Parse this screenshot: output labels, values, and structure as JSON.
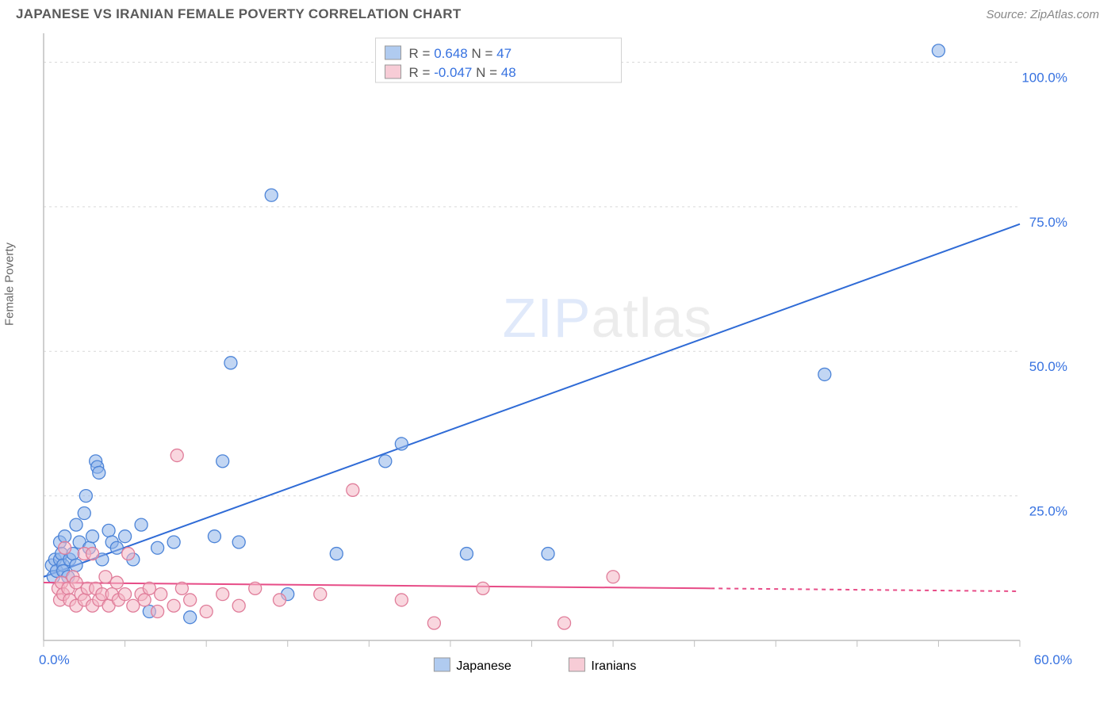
{
  "header": {
    "title": "JAPANESE VS IRANIAN FEMALE POVERTY CORRELATION CHART",
    "source": "Source: ZipAtlas.com"
  },
  "chart": {
    "type": "scatter",
    "ylabel": "Female Poverty",
    "background_color": "#ffffff",
    "grid_color": "#d9d9d9",
    "axis_color": "#bfbfbf",
    "tick_color": "#bfbfbf",
    "label_color": "#3772e0",
    "xlim": [
      0,
      60
    ],
    "ylim": [
      0,
      105
    ],
    "ytick_values": [
      25,
      50,
      75,
      100
    ],
    "ytick_labels": [
      "25.0%",
      "50.0%",
      "75.0%",
      "100.0%"
    ],
    "xtick_minor_step": 5,
    "xtick_labels": {
      "0": "0.0%",
      "60": "60.0%"
    },
    "series": [
      {
        "name": "Japanese",
        "color_fill": "#8fb5e9",
        "color_stroke": "#4c84d8",
        "fill_opacity": 0.55,
        "marker_radius": 8,
        "R": "0.648",
        "N": "47",
        "trend": {
          "x1": 0,
          "y1": 11,
          "x2": 60,
          "y2": 72,
          "dash_from_x": 60,
          "color": "#2f6bd6",
          "width": 2
        },
        "points": [
          [
            0.5,
            13
          ],
          [
            0.6,
            11
          ],
          [
            0.7,
            14
          ],
          [
            0.8,
            12
          ],
          [
            1.0,
            17
          ],
          [
            1.0,
            14
          ],
          [
            1.1,
            15
          ],
          [
            1.2,
            13
          ],
          [
            1.2,
            12
          ],
          [
            1.3,
            18
          ],
          [
            1.5,
            11
          ],
          [
            1.6,
            14
          ],
          [
            1.8,
            15
          ],
          [
            2.0,
            20
          ],
          [
            2.0,
            13
          ],
          [
            2.2,
            17
          ],
          [
            2.5,
            22
          ],
          [
            2.6,
            25
          ],
          [
            2.8,
            16
          ],
          [
            3.0,
            18
          ],
          [
            3.2,
            31
          ],
          [
            3.3,
            30
          ],
          [
            3.4,
            29
          ],
          [
            3.6,
            14
          ],
          [
            4.0,
            19
          ],
          [
            4.2,
            17
          ],
          [
            4.5,
            16
          ],
          [
            5.0,
            18
          ],
          [
            5.5,
            14
          ],
          [
            6.0,
            20
          ],
          [
            6.5,
            5
          ],
          [
            7.0,
            16
          ],
          [
            8.0,
            17
          ],
          [
            9.0,
            4
          ],
          [
            10.5,
            18
          ],
          [
            11.0,
            31
          ],
          [
            11.5,
            48
          ],
          [
            12.0,
            17
          ],
          [
            14.0,
            77
          ],
          [
            15.0,
            8
          ],
          [
            18.0,
            15
          ],
          [
            21.0,
            31
          ],
          [
            22.0,
            34
          ],
          [
            26.0,
            15
          ],
          [
            31.0,
            15
          ],
          [
            48.0,
            46
          ],
          [
            55.0,
            102
          ]
        ]
      },
      {
        "name": "Iranians",
        "color_fill": "#f4b6c4",
        "color_stroke": "#e07d9a",
        "fill_opacity": 0.55,
        "marker_radius": 8,
        "R": "-0.047",
        "N": "48",
        "trend": {
          "x1": 0,
          "y1": 10,
          "x2": 41,
          "y2": 9,
          "dash_from_x": 41,
          "dash_to_x": 60,
          "dash_y": 8.5,
          "color": "#e74c87",
          "width": 2
        },
        "points": [
          [
            0.9,
            9
          ],
          [
            1.0,
            7
          ],
          [
            1.1,
            10
          ],
          [
            1.2,
            8
          ],
          [
            1.3,
            16
          ],
          [
            1.5,
            9
          ],
          [
            1.6,
            7
          ],
          [
            1.8,
            11
          ],
          [
            2.0,
            6
          ],
          [
            2.0,
            10
          ],
          [
            2.3,
            8
          ],
          [
            2.5,
            7
          ],
          [
            2.5,
            15
          ],
          [
            2.7,
            9
          ],
          [
            3.0,
            6
          ],
          [
            3.0,
            15
          ],
          [
            3.2,
            9
          ],
          [
            3.4,
            7
          ],
          [
            3.6,
            8
          ],
          [
            3.8,
            11
          ],
          [
            4.0,
            6
          ],
          [
            4.2,
            8
          ],
          [
            4.5,
            10
          ],
          [
            4.6,
            7
          ],
          [
            5.0,
            8
          ],
          [
            5.2,
            15
          ],
          [
            5.5,
            6
          ],
          [
            6.0,
            8
          ],
          [
            6.2,
            7
          ],
          [
            6.5,
            9
          ],
          [
            7.0,
            5
          ],
          [
            7.2,
            8
          ],
          [
            8.0,
            6
          ],
          [
            8.2,
            32
          ],
          [
            8.5,
            9
          ],
          [
            9.0,
            7
          ],
          [
            10.0,
            5
          ],
          [
            11.0,
            8
          ],
          [
            12.0,
            6
          ],
          [
            13.0,
            9
          ],
          [
            14.5,
            7
          ],
          [
            17.0,
            8
          ],
          [
            19.0,
            26
          ],
          [
            22.0,
            7
          ],
          [
            24.0,
            3
          ],
          [
            27.0,
            9
          ],
          [
            32.0,
            3
          ],
          [
            35.0,
            11
          ]
        ]
      }
    ],
    "top_legend_box": {
      "fill": "#ffffff",
      "stroke": "#d0d0d0",
      "swatch_stroke": "#999",
      "R_label": "R =",
      "N_label": "N ="
    },
    "bottom_legend": {
      "swatch_stroke": "#999"
    },
    "watermark": {
      "zip": "ZIP",
      "atlas": "atlas"
    }
  }
}
